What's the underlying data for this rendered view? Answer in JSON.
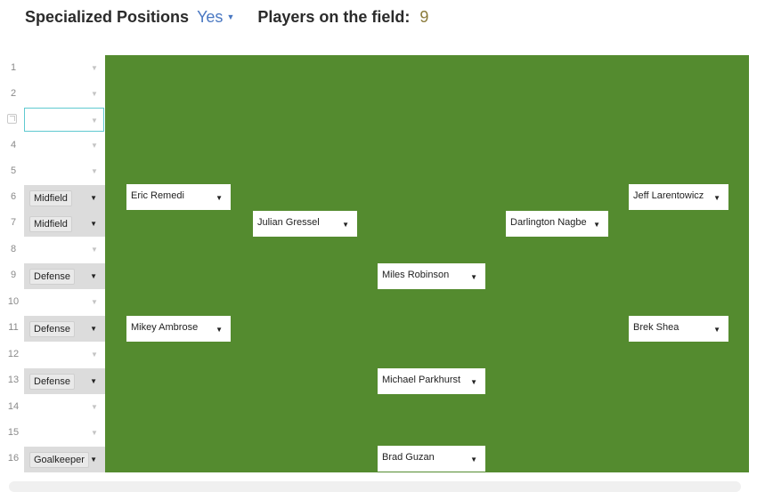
{
  "header": {
    "specialized_label": "Specialized Positions",
    "specialized_value": "Yes",
    "players_label": "Players on the field:",
    "players_value": "9"
  },
  "rows": [
    {
      "num": "1"
    },
    {
      "num": "2"
    },
    {
      "num": ""
    },
    {
      "num": "4"
    },
    {
      "num": "5"
    },
    {
      "num": "6",
      "position": "Midfield"
    },
    {
      "num": "7",
      "position": "Midfield"
    },
    {
      "num": "8"
    },
    {
      "num": "9",
      "position": "Defense"
    },
    {
      "num": "10"
    },
    {
      "num": "11",
      "position": "Defense"
    },
    {
      "num": "12"
    },
    {
      "num": "13",
      "position": "Defense"
    },
    {
      "num": "14"
    },
    {
      "num": "15"
    },
    {
      "num": "16",
      "position": "Goalkeeper"
    }
  ],
  "players": [
    {
      "name": "Eric Remedi"
    },
    {
      "name": "Julian Gressel"
    },
    {
      "name": "Darlington Nagbe"
    },
    {
      "name": "Jeff Larentowicz"
    },
    {
      "name": "Miles Robinson"
    },
    {
      "name": "Mikey Ambrose"
    },
    {
      "name": "Brek Shea"
    },
    {
      "name": "Michael Parkhurst"
    },
    {
      "name": "Brad Guzan"
    }
  ],
  "colors": {
    "field": "#548b2f",
    "accent": "#4a78c2",
    "count": "#8a7a3a"
  }
}
